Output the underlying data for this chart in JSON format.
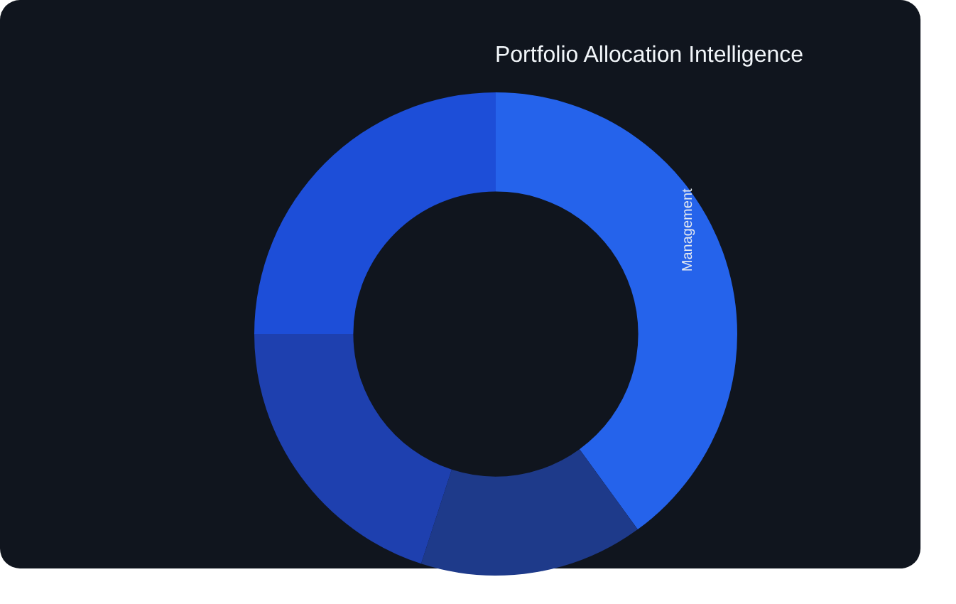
{
  "chart_data": {
    "type": "donut",
    "title": "Portfolio Allocation Intelligence",
    "categories": [
      null,
      null,
      null,
      null
    ],
    "values": [
      40,
      15,
      20,
      25
    ],
    "colors": [
      "#2563eb",
      "#1e3a8a",
      "#1e40af",
      "#1d4ed8"
    ],
    "annotations": [
      "Management"
    ],
    "legend": false
  }
}
